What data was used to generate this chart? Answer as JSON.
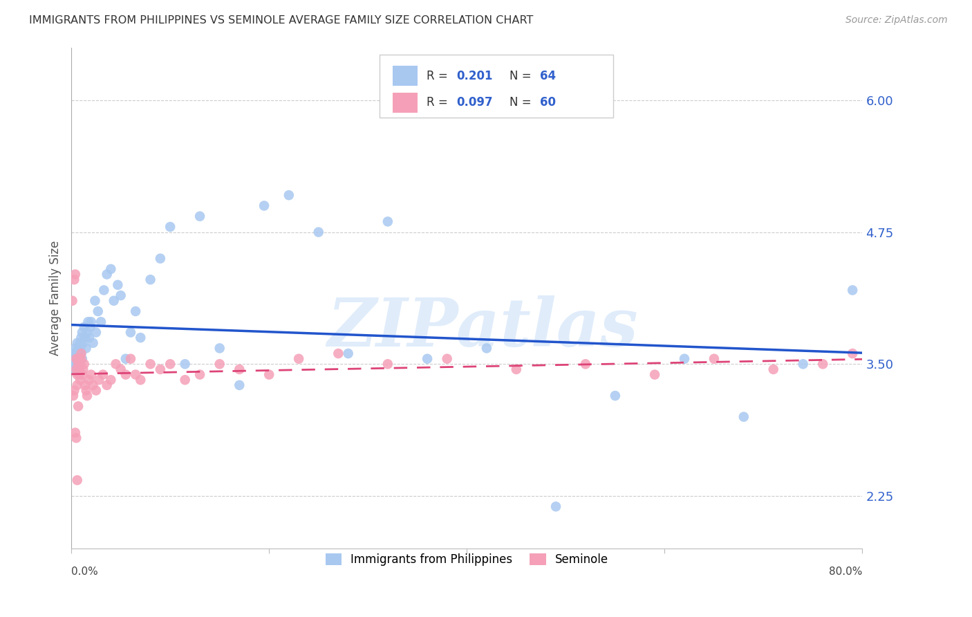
{
  "title": "IMMIGRANTS FROM PHILIPPINES VS SEMINOLE AVERAGE FAMILY SIZE CORRELATION CHART",
  "source": "Source: ZipAtlas.com",
  "ylabel": "Average Family Size",
  "watermark": "ZIPatlas",
  "legend_label1": "Immigrants from Philippines",
  "legend_label2": "Seminole",
  "R1": 0.201,
  "N1": 64,
  "R2": 0.097,
  "N2": 60,
  "color_blue": "#a8c8f0",
  "color_pink": "#f5a0b8",
  "color_blue_line": "#2255cc",
  "color_pink_line": "#dd4477",
  "yticks": [
    2.25,
    3.5,
    4.75,
    6.0
  ],
  "ylim": [
    1.75,
    6.5
  ],
  "xlim": [
    0.0,
    0.8
  ],
  "blue_x": [
    0.001,
    0.002,
    0.003,
    0.003,
    0.004,
    0.004,
    0.005,
    0.005,
    0.006,
    0.006,
    0.007,
    0.007,
    0.008,
    0.008,
    0.009,
    0.009,
    0.01,
    0.01,
    0.011,
    0.011,
    0.012,
    0.013,
    0.014,
    0.015,
    0.016,
    0.017,
    0.018,
    0.019,
    0.02,
    0.022,
    0.024,
    0.025,
    0.027,
    0.03,
    0.033,
    0.036,
    0.04,
    0.043,
    0.047,
    0.05,
    0.055,
    0.06,
    0.065,
    0.07,
    0.08,
    0.09,
    0.1,
    0.115,
    0.13,
    0.15,
    0.17,
    0.195,
    0.22,
    0.25,
    0.28,
    0.32,
    0.36,
    0.42,
    0.49,
    0.55,
    0.62,
    0.68,
    0.74,
    0.79
  ],
  "blue_y": [
    3.5,
    3.55,
    3.6,
    3.45,
    3.55,
    3.65,
    3.5,
    3.6,
    3.55,
    3.7,
    3.6,
    3.65,
    3.5,
    3.55,
    3.65,
    3.7,
    3.6,
    3.75,
    3.55,
    3.8,
    3.7,
    3.85,
    3.75,
    3.65,
    3.8,
    3.9,
    3.75,
    3.85,
    3.9,
    3.7,
    4.1,
    3.8,
    4.0,
    3.9,
    4.2,
    4.35,
    4.4,
    4.1,
    4.25,
    4.15,
    3.55,
    3.8,
    4.0,
    3.75,
    4.3,
    4.5,
    4.8,
    3.5,
    4.9,
    3.65,
    3.3,
    5.0,
    5.1,
    4.75,
    3.6,
    4.85,
    3.55,
    3.65,
    2.15,
    3.2,
    3.55,
    3.0,
    3.5,
    4.2
  ],
  "pink_x": [
    0.001,
    0.002,
    0.003,
    0.003,
    0.004,
    0.005,
    0.005,
    0.006,
    0.006,
    0.007,
    0.007,
    0.008,
    0.008,
    0.009,
    0.009,
    0.01,
    0.01,
    0.011,
    0.012,
    0.013,
    0.014,
    0.015,
    0.016,
    0.018,
    0.02,
    0.022,
    0.025,
    0.028,
    0.032,
    0.036,
    0.04,
    0.045,
    0.05,
    0.055,
    0.06,
    0.065,
    0.07,
    0.08,
    0.09,
    0.1,
    0.115,
    0.13,
    0.15,
    0.17,
    0.2,
    0.23,
    0.27,
    0.32,
    0.38,
    0.45,
    0.52,
    0.59,
    0.65,
    0.71,
    0.76,
    0.79,
    0.005,
    0.007,
    0.006,
    0.004
  ],
  "pink_y": [
    4.1,
    3.2,
    3.25,
    4.3,
    4.35,
    3.45,
    3.55,
    3.4,
    3.3,
    3.5,
    3.55,
    3.4,
    3.45,
    3.5,
    3.35,
    3.55,
    3.6,
    3.4,
    3.45,
    3.5,
    3.3,
    3.25,
    3.2,
    3.35,
    3.4,
    3.3,
    3.25,
    3.35,
    3.4,
    3.3,
    3.35,
    3.5,
    3.45,
    3.4,
    3.55,
    3.4,
    3.35,
    3.5,
    3.45,
    3.5,
    3.35,
    3.4,
    3.5,
    3.45,
    3.4,
    3.55,
    3.6,
    3.5,
    3.55,
    3.45,
    3.5,
    3.4,
    3.55,
    3.45,
    3.5,
    3.6,
    2.8,
    3.1,
    2.4,
    2.85
  ]
}
